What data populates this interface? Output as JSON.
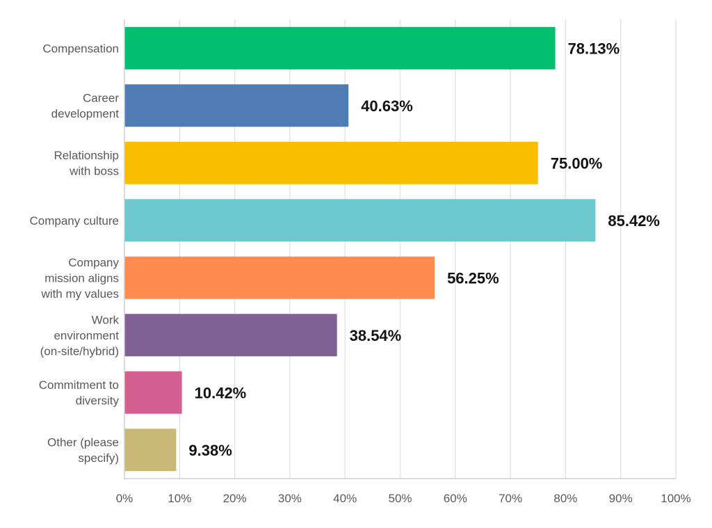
{
  "chart_data": {
    "type": "bar",
    "orientation": "horizontal",
    "categories": [
      "Compensation",
      "Career development",
      "Relationship with boss",
      "Company culture",
      "Company mission aligns with my values",
      "Work environment (on-site/hybrid)",
      "Commitment to diversity",
      "Other (please specify)"
    ],
    "category_lines": [
      [
        "Compensation"
      ],
      [
        "Career",
        "development"
      ],
      [
        "Relationship",
        "with boss"
      ],
      [
        "Company culture"
      ],
      [
        "Company",
        "mission aligns",
        "with my values"
      ],
      [
        "Work",
        "environment",
        "(on-site/hybrid)"
      ],
      [
        "Commitment to",
        "diversity"
      ],
      [
        "Other (please",
        "specify)"
      ]
    ],
    "values": [
      78.13,
      40.63,
      75.0,
      85.42,
      56.25,
      38.54,
      10.42,
      9.38
    ],
    "value_labels": [
      "78.13%",
      "40.63%",
      "75.00%",
      "85.42%",
      "56.25%",
      "38.54%",
      "10.42%",
      "9.38%"
    ],
    "colors": [
      "#00bf6f",
      "#507cb6",
      "#f9be00",
      "#6bc8cd",
      "#ff8b4f",
      "#7f6195",
      "#d25f90",
      "#c9b978"
    ],
    "x_ticks": [
      0,
      10,
      20,
      30,
      40,
      50,
      60,
      70,
      80,
      90,
      100
    ],
    "x_tick_labels": [
      "0%",
      "10%",
      "20%",
      "30%",
      "40%",
      "50%",
      "60%",
      "70%",
      "80%",
      "90%",
      "100%"
    ],
    "xlim": [
      0,
      100
    ],
    "grid": true,
    "title": "",
    "xlabel": "",
    "ylabel": ""
  }
}
